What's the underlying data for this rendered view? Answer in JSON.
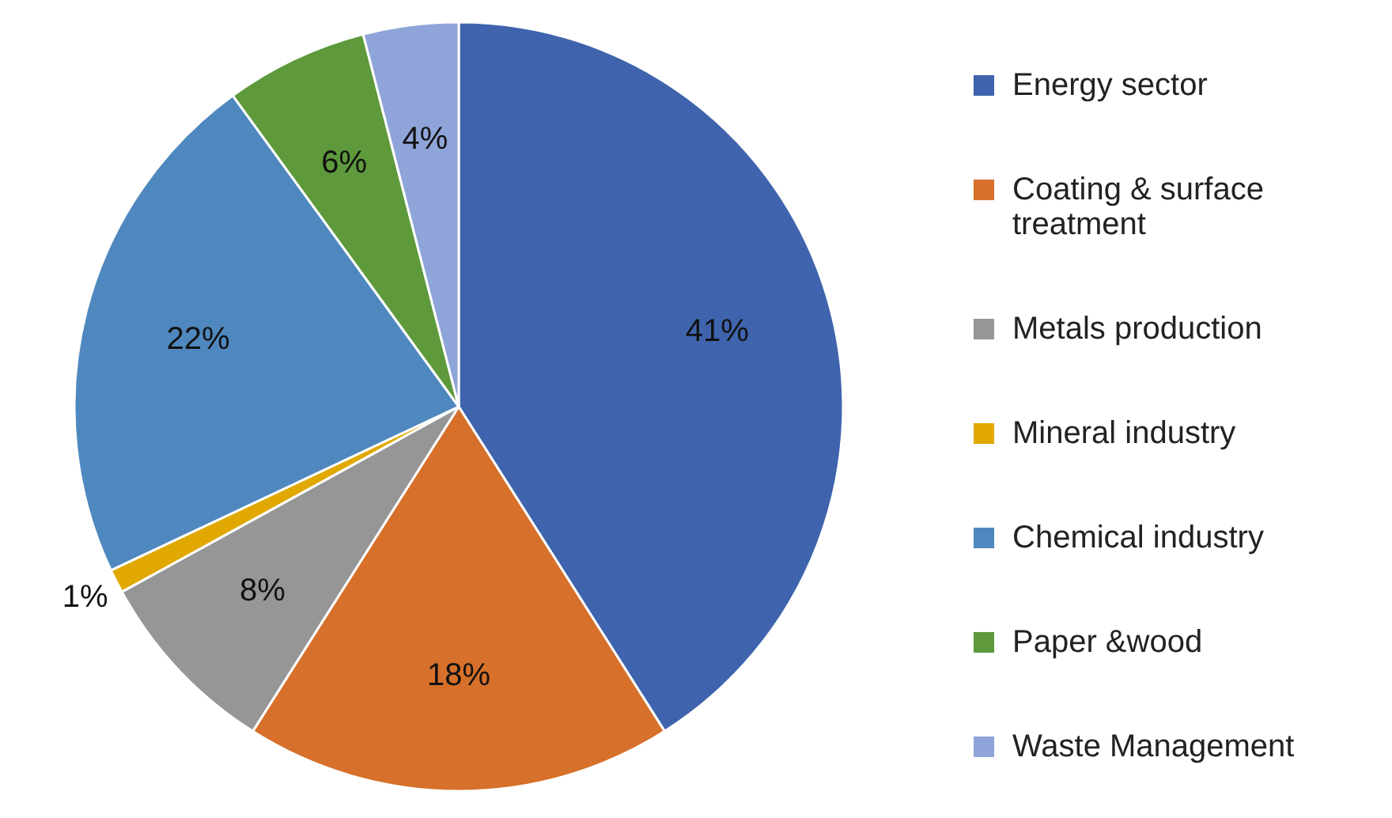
{
  "chart_data": {
    "type": "pie",
    "categories": [
      "Energy sector",
      "Coating & surface treatment",
      "Metals production",
      "Mineral industry",
      "Chemical industry",
      "Paper &wood",
      "Waste Management"
    ],
    "values": [
      41,
      18,
      8,
      1,
      22,
      6,
      4
    ],
    "value_labels": [
      "41%",
      "18%",
      "8%",
      "1%",
      "22%",
      "6%",
      "4%"
    ],
    "colors": [
      "#3f64ad",
      "#d6702a",
      "#969696",
      "#e0a800",
      "#4f88be",
      "#5e9a3c",
      "#8fa4d8"
    ],
    "legend": "right"
  }
}
